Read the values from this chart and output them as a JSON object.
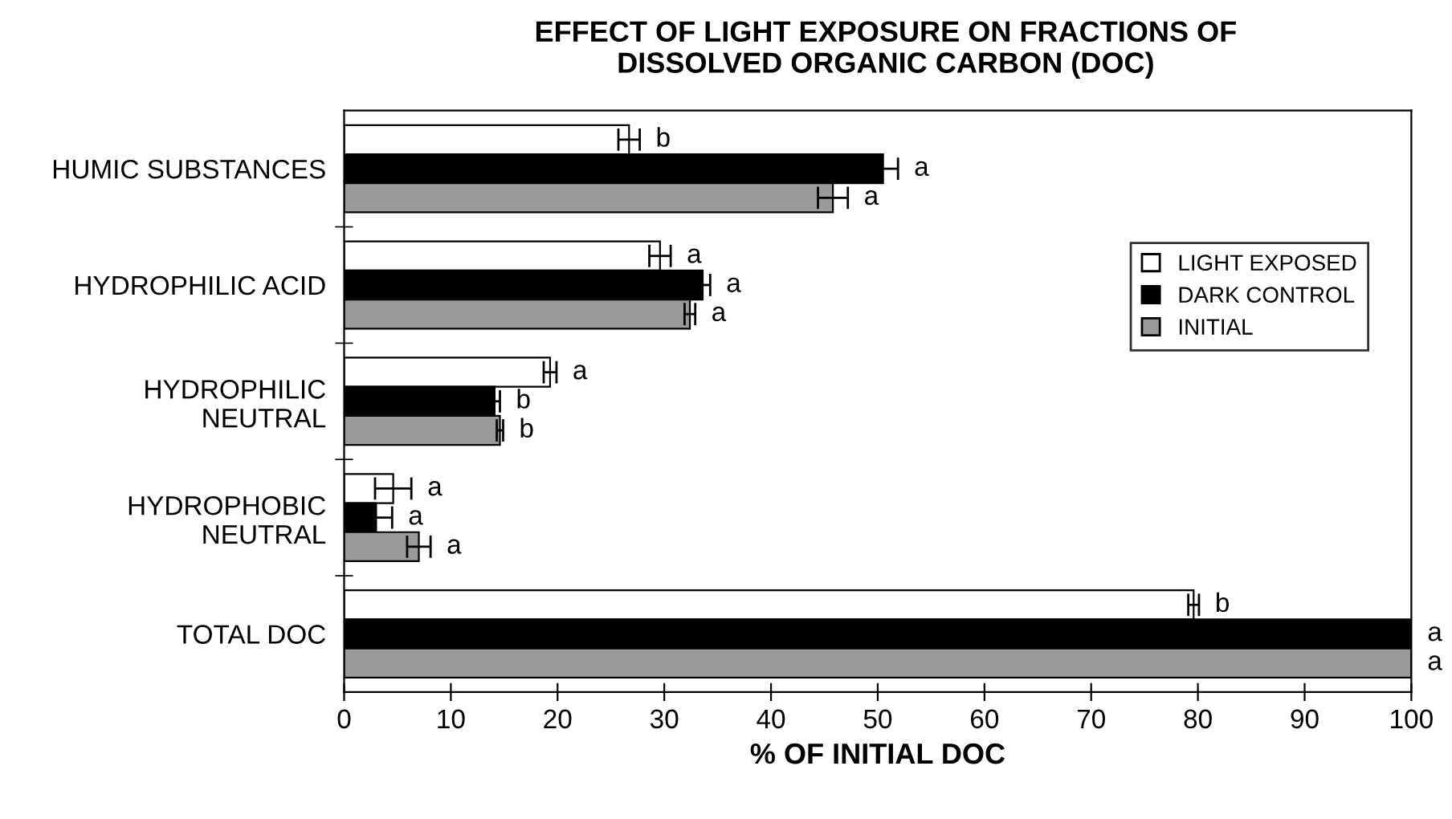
{
  "chart_data": {
    "type": "bar",
    "orientation": "horizontal",
    "title": "EFFECT OF LIGHT EXPOSURE ON FRACTIONS OF\nDISSOLVED ORGANIC CARBON (DOC)",
    "xlabel": "% OF INITIAL DOC",
    "categories": [
      "HUMIC SUBSTANCES",
      "HYDROPHILIC ACID",
      "HYDROPHILIC\nNEUTRAL",
      "HYDROPHOBIC\nNEUTRAL",
      "TOTAL DOC"
    ],
    "series": [
      {
        "name": "LIGHT EXPOSED",
        "color": "#ffffff",
        "values": [
          26.7,
          29.6,
          19.3,
          4.6,
          79.6
        ],
        "errors": [
          1.0,
          1.0,
          0.6,
          1.7,
          0.5
        ],
        "value_labels": [
          "b",
          "a",
          "a",
          "a",
          "b"
        ]
      },
      {
        "name": "DARK CONTROL",
        "color": "#000000",
        "values": [
          50.5,
          33.6,
          14.1,
          3.0,
          100
        ],
        "errors": [
          1.4,
          0.7,
          0.5,
          1.5,
          null
        ],
        "value_labels": [
          "a",
          "a",
          "b",
          "a",
          "a"
        ]
      },
      {
        "name": "INITIAL",
        "color": "#9a9a9a",
        "values": [
          45.8,
          32.4,
          14.6,
          7.0,
          100
        ],
        "errors": [
          1.4,
          0.5,
          0.3,
          1.1,
          null
        ],
        "value_labels": [
          "a",
          "a",
          "b",
          "a",
          "a"
        ]
      }
    ],
    "xlim": [
      0,
      100
    ],
    "xticks": [
      0,
      10,
      20,
      30,
      40,
      50,
      60,
      70,
      80,
      90,
      100
    ],
    "grid": false,
    "legend": "right"
  }
}
